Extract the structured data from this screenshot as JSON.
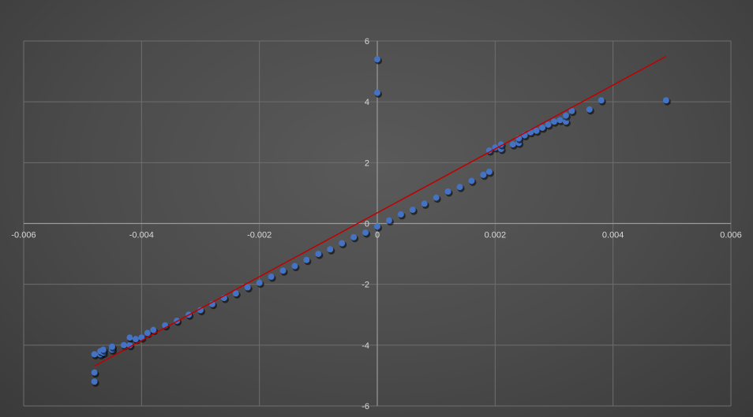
{
  "chart_data": {
    "type": "scatter",
    "title": "",
    "xlabel": "",
    "ylabel": "",
    "xlim": [
      -0.006,
      0.006
    ],
    "ylim": [
      -6,
      6
    ],
    "x_ticks": [
      -0.006,
      -0.004,
      -0.002,
      0,
      0.002,
      0.004,
      0.006
    ],
    "x_tick_labels": [
      "-0.006",
      "-0.004",
      "-0.002",
      "0",
      "0.002",
      "0.004",
      "0.006"
    ],
    "y_ticks": [
      -6,
      -4,
      -2,
      0,
      2,
      4,
      6
    ],
    "y_tick_labels": [
      "-6",
      "-4",
      "-2",
      "0",
      "2",
      "4",
      "6"
    ],
    "grid": true,
    "legend": "none",
    "colors": {
      "background": "#4a4a4a",
      "gridline": "#6e6e6e",
      "axis": "#9a9a9a",
      "points": "#4472c4",
      "trendline": "#c00000",
      "tick_text": "#d9d9d9"
    },
    "series": [
      {
        "name": "",
        "points": [
          [
            -0.0048,
            -5.2
          ],
          [
            -0.0048,
            -4.9
          ],
          [
            -0.0048,
            -4.3
          ],
          [
            -0.0047,
            -4.3
          ],
          [
            -0.0047,
            -4.2
          ],
          [
            -0.00465,
            -4.25
          ],
          [
            -0.00465,
            -4.15
          ],
          [
            -0.0045,
            -4.15
          ],
          [
            -0.0045,
            -4.05
          ],
          [
            -0.0043,
            -4.0
          ],
          [
            -0.0042,
            -4.0
          ],
          [
            -0.0042,
            -3.75
          ],
          [
            -0.0041,
            -3.8
          ],
          [
            -0.004,
            -3.75
          ],
          [
            -0.0039,
            -3.6
          ],
          [
            -0.0038,
            -3.5
          ],
          [
            -0.0036,
            -3.35
          ],
          [
            -0.0034,
            -3.2
          ],
          [
            -0.0032,
            -3.0
          ],
          [
            -0.003,
            -2.85
          ],
          [
            -0.0028,
            -2.65
          ],
          [
            -0.0026,
            -2.45
          ],
          [
            -0.0024,
            -2.3
          ],
          [
            -0.0022,
            -2.1
          ],
          [
            -0.002,
            -1.95
          ],
          [
            -0.0018,
            -1.75
          ],
          [
            -0.0016,
            -1.55
          ],
          [
            -0.0014,
            -1.4
          ],
          [
            -0.0012,
            -1.2
          ],
          [
            -0.001,
            -1.0
          ],
          [
            -0.0008,
            -0.85
          ],
          [
            -0.0006,
            -0.65
          ],
          [
            -0.0004,
            -0.45
          ],
          [
            -0.0002,
            -0.3
          ],
          [
            0,
            -0.1
          ],
          [
            0,
            4.3
          ],
          [
            0,
            5.4
          ],
          [
            0.0002,
            0.1
          ],
          [
            0.0004,
            0.3
          ],
          [
            0.0006,
            0.45
          ],
          [
            0.0008,
            0.65
          ],
          [
            0.001,
            0.85
          ],
          [
            0.0012,
            1.05
          ],
          [
            0.0014,
            1.2
          ],
          [
            0.0016,
            1.4
          ],
          [
            0.0018,
            1.6
          ],
          [
            0.0019,
            1.7
          ],
          [
            0.0019,
            2.4
          ],
          [
            0.002,
            2.5
          ],
          [
            0.0021,
            2.45
          ],
          [
            0.0021,
            2.6
          ],
          [
            0.0023,
            2.6
          ],
          [
            0.0024,
            2.65
          ],
          [
            0.0024,
            2.8
          ],
          [
            0.0025,
            2.9
          ],
          [
            0.0026,
            3.0
          ],
          [
            0.0027,
            3.05
          ],
          [
            0.0028,
            3.15
          ],
          [
            0.0029,
            3.25
          ],
          [
            0.003,
            3.35
          ],
          [
            0.0031,
            3.4
          ],
          [
            0.0032,
            3.35
          ],
          [
            0.0032,
            3.55
          ],
          [
            0.0033,
            3.7
          ],
          [
            0.0036,
            3.75
          ],
          [
            0.0038,
            4.05
          ],
          [
            0.0049,
            4.05
          ]
        ]
      }
    ],
    "trendline": {
      "type": "linear",
      "x_range": [
        -0.0048,
        0.0049
      ],
      "slope": 1050,
      "intercept": 0.35
    }
  }
}
